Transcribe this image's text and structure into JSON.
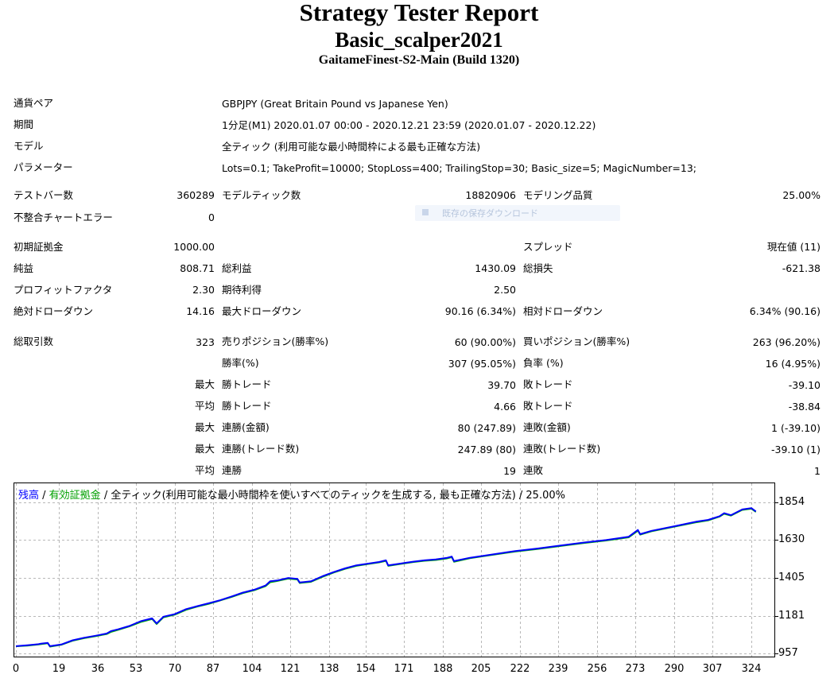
{
  "report": {
    "title": "Strategy Tester Report",
    "ea_name": "Basic_scalper2021",
    "server": "GaitameFinest-S2-Main (Build 1320)"
  },
  "summary": {
    "symbol_label": "通貨ペア",
    "symbol_value": "GBPJPY (Great Britain Pound vs Japanese Yen)",
    "period_label": "期間",
    "period_value": "1分足(M1) 2020.01.07 00:00 - 2020.12.21 23:59 (2020.01.07 - 2020.12.22)",
    "model_label": "モデル",
    "model_value": "全ティック (利用可能な最小時間枠による最も正確な方法)",
    "params_label": "パラメーター",
    "params_value": "Lots=0.1; TakeProfit=10000; StopLoss=400; TrailingStop=30; Basic_size=5; MagicNumber=13;"
  },
  "ghost_tooltip": "既存の保存ダウンロード",
  "stats": {
    "bars_label": "テストバー数",
    "bars_value": "360289",
    "ticks_label": "モデルティック数",
    "ticks_value": "18820906",
    "quality_label": "モデリング品質",
    "quality_value": "25.00%",
    "mismatch_label": "不整合チャートエラー",
    "mismatch_value": "0",
    "deposit_label": "初期証拠金",
    "deposit_value": "1000.00",
    "spread_label": "スプレッド",
    "spread_value": "現在値 (11)",
    "net_label": "純益",
    "net_value": "808.71",
    "gross_profit_label": "総利益",
    "gross_profit_value": "1430.09",
    "gross_loss_label": "総損失",
    "gross_loss_value": "-621.38",
    "pf_label": "プロフィットファクタ",
    "pf_value": "2.30",
    "expected_label": "期待利得",
    "expected_value": "2.50",
    "abs_dd_label": "絶対ドローダウン",
    "abs_dd_value": "14.16",
    "max_dd_label": "最大ドローダウン",
    "max_dd_value": "90.16 (6.34%)",
    "rel_dd_label": "相対ドローダウン",
    "rel_dd_value": "6.34% (90.16)",
    "trades_label": "総取引数",
    "trades_value": "323",
    "short_label": "売りポジション(勝率%)",
    "short_value": "60 (90.00%)",
    "long_label": "買いポジション(勝率%)",
    "long_value": "263 (96.20%)",
    "win_rate_label": "勝率(%)",
    "win_rate_value": "307 (95.05%)",
    "loss_rate_label": "負率 (%)",
    "loss_rate_value": "16 (4.95%)",
    "max_prefix": "最大",
    "avg_prefix": "平均",
    "largest_win_label": "勝トレード",
    "largest_win_value": "39.70",
    "largest_loss_label": "敗トレード",
    "largest_loss_value": "-39.10",
    "avg_win_label": "勝トレード",
    "avg_win_value": "4.66",
    "avg_loss_label": "敗トレード",
    "avg_loss_value": "-38.84",
    "max_consec_wins_money_label": "連勝(金額)",
    "max_consec_wins_money_value": "80 (247.89)",
    "max_consec_losses_money_label": "連敗(金額)",
    "max_consec_losses_money_value": "1 (-39.10)",
    "max_consec_wins_count_label": "連勝(トレード数)",
    "max_consec_wins_count_value": "247.89 (80)",
    "max_consec_losses_count_label": "連敗(トレード数)",
    "max_consec_losses_count_value": "-39.10 (1)",
    "avg_consec_wins_label": "連勝",
    "avg_consec_wins_value": "19",
    "avg_consec_losses_label": "連敗",
    "avg_consec_losses_value": "1"
  },
  "chart_data": {
    "type": "line",
    "legend": {
      "balance": "残高",
      "sep1": " / ",
      "equity": "有効証拠金",
      "sep2": " / ",
      "description": "全ティック(利用可能な最小時間枠を使いすべてのティックを生成する, 最も正確な方法) / 25.00%"
    },
    "colors": {
      "balance": "#0000ff",
      "equity": "#00b000",
      "grid": "#b8b8b8",
      "legend_text": "#000000"
    },
    "grid": true,
    "ylim": [
      957,
      1854
    ],
    "xlim": [
      0,
      331
    ],
    "y_ticks": [
      1854,
      1630,
      1405,
      1181,
      957
    ],
    "x_ticks": [
      0,
      19,
      36,
      53,
      70,
      87,
      104,
      121,
      138,
      154,
      171,
      188,
      205,
      222,
      239,
      256,
      273,
      290,
      307,
      324
    ],
    "series": [
      {
        "name": "残高",
        "x": [
          0,
          5,
          10,
          11,
          14,
          15,
          20,
          25,
          30,
          35,
          40,
          42,
          45,
          50,
          55,
          60,
          62,
          65,
          70,
          75,
          80,
          85,
          90,
          95,
          100,
          105,
          110,
          112,
          115,
          120,
          124,
          125,
          130,
          135,
          140,
          145,
          150,
          155,
          160,
          163,
          164,
          170,
          175,
          180,
          185,
          190,
          192,
          193,
          200,
          210,
          220,
          230,
          240,
          250,
          260,
          270,
          274,
          275,
          280,
          290,
          300,
          305,
          310,
          312,
          315,
          320,
          324,
          326
        ],
        "y": [
          1000,
          1005,
          1012,
          1015,
          1020,
          1000,
          1010,
          1035,
          1050,
          1062,
          1075,
          1090,
          1100,
          1120,
          1148,
          1165,
          1135,
          1175,
          1190,
          1220,
          1238,
          1255,
          1273,
          1295,
          1318,
          1335,
          1360,
          1385,
          1390,
          1405,
          1400,
          1378,
          1385,
          1415,
          1440,
          1462,
          1480,
          1490,
          1500,
          1510,
          1480,
          1492,
          1502,
          1510,
          1515,
          1525,
          1532,
          1505,
          1525,
          1545,
          1565,
          1580,
          1598,
          1615,
          1630,
          1650,
          1690,
          1665,
          1685,
          1712,
          1740,
          1750,
          1772,
          1790,
          1778,
          1812,
          1820,
          1800
        ]
      },
      {
        "name": "有効証拠金",
        "x": [
          0,
          5,
          10,
          11,
          14,
          15,
          20,
          25,
          30,
          35,
          40,
          42,
          45,
          50,
          55,
          60,
          62,
          65,
          70,
          75,
          80,
          85,
          90,
          95,
          100,
          105,
          110,
          112,
          115,
          120,
          124,
          125,
          130,
          135,
          140,
          145,
          150,
          155,
          160,
          163,
          164,
          170,
          175,
          180,
          185,
          190,
          192,
          193,
          200,
          210,
          220,
          230,
          240,
          250,
          260,
          270,
          274,
          275,
          280,
          290,
          300,
          305,
          310,
          312,
          315,
          320,
          324,
          326
        ],
        "y": [
          998,
          1002,
          1009,
          1011,
          1016,
          996,
          1007,
          1031,
          1046,
          1058,
          1071,
          1084,
          1096,
          1116,
          1142,
          1160,
          1130,
          1170,
          1186,
          1215,
          1234,
          1250,
          1270,
          1291,
          1314,
          1331,
          1355,
          1378,
          1385,
          1400,
          1395,
          1374,
          1381,
          1410,
          1436,
          1458,
          1476,
          1486,
          1496,
          1505,
          1476,
          1488,
          1498,
          1506,
          1511,
          1520,
          1527,
          1500,
          1521,
          1541,
          1561,
          1576,
          1594,
          1611,
          1626,
          1645,
          1684,
          1661,
          1681,
          1708,
          1735,
          1746,
          1768,
          1785,
          1774,
          1808,
          1815,
          1796
        ]
      }
    ]
  }
}
